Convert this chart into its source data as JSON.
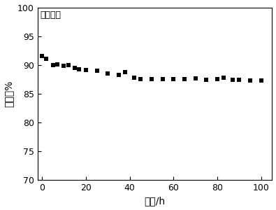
{
  "x": [
    0,
    2,
    5,
    7,
    10,
    12,
    15,
    17,
    20,
    25,
    30,
    35,
    38,
    42,
    45,
    50,
    55,
    60,
    65,
    70,
    75,
    80,
    83,
    87,
    90,
    95,
    100
  ],
  "y": [
    91.5,
    91.0,
    90.0,
    90.1,
    89.9,
    90.0,
    89.5,
    89.2,
    89.1,
    89.0,
    88.5,
    88.3,
    88.8,
    87.8,
    87.5,
    87.5,
    87.5,
    87.5,
    87.5,
    87.6,
    87.4,
    87.5,
    87.8,
    87.4,
    87.4,
    87.3,
    87.3
  ],
  "title": "实施例一",
  "xlabel": "时间/h",
  "ylabel": "转化率%",
  "xlim": [
    -2,
    105
  ],
  "ylim": [
    70,
    100
  ],
  "xticks": [
    0,
    20,
    40,
    60,
    80,
    100
  ],
  "yticks": [
    70,
    75,
    80,
    85,
    90,
    95,
    100
  ],
  "marker": "s",
  "marker_color": "#000000",
  "marker_size": 4,
  "bg_color": "#ffffff"
}
